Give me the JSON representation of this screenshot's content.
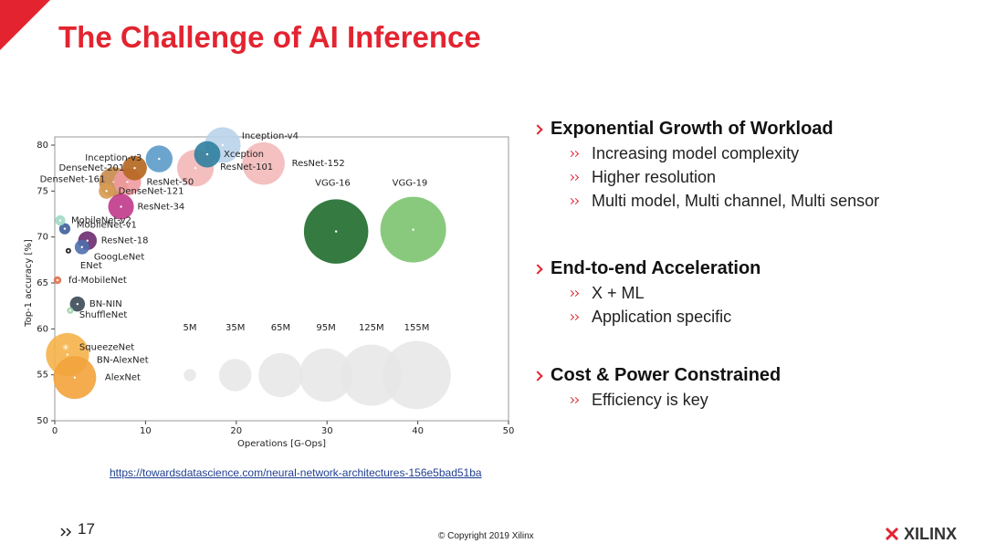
{
  "header": {
    "title": "The Challenge of AI Inference"
  },
  "chart_data": {
    "type": "bubble",
    "xlabel": "Operations [G-Ops]",
    "ylabel": "Top-1 accuracy [%]",
    "labels": [
      "Inception-v4",
      "Xception",
      "ResNet-152",
      "ResNet-101",
      "Inception-v3",
      "DenseNet-201",
      "ResNet-50",
      "DenseNet-161",
      "DenseNet-121",
      "ResNet-34",
      "VGG-16",
      "VGG-19",
      "MobileNet-v2",
      "MobileNet-v1",
      "ResNet-18",
      "GoogLeNet",
      "ENet",
      "fd-MobileNet",
      "BN-NIN",
      "ShuffleNet",
      "SqueezeNet",
      "BN-AlexNet",
      "AlexNet"
    ],
    "x": [
      18.5,
      16.8,
      23,
      15.5,
      11.5,
      8.8,
      8,
      6.5,
      5.7,
      7.3,
      31,
      39.5,
      0.6,
      1.1,
      3.6,
      3,
      1.5,
      0.3,
      2.5,
      1.7,
      1.2,
      1.4,
      2.2
    ],
    "values": [
      80,
      79,
      78,
      77.5,
      78.5,
      77.5,
      76,
      76,
      75,
      73.3,
      70.6,
      70.8,
      71.8,
      70.9,
      69.6,
      68.9,
      68.5,
      65.3,
      62.7,
      62,
      58,
      57.2,
      54.7
    ],
    "sizes": [
      43,
      23,
      60,
      45,
      24,
      20,
      25,
      29,
      8,
      22,
      138,
      144,
      3.5,
      4.2,
      11.7,
      7,
      0.4,
      2,
      7.6,
      1.4,
      1.2,
      62,
      61
    ],
    "colors": [
      "#b9d3ea",
      "#2f7f9e",
      "#f3b9b9",
      "#f4b7b7",
      "#5b9bc9",
      "#b5651d",
      "#ef9aa0",
      "#c68a4a",
      "#d79b54",
      "#c0398a",
      "#1e6b2c",
      "#7cc36f",
      "#9fd9c7",
      "#3d5f9a",
      "#6b2a6f",
      "#4f6fae",
      "#111111",
      "#e0704f",
      "#3a4a55",
      "#9bd0a8",
      "#f6d38a",
      "#f5b24a",
      "#f3a33c"
    ],
    "xlim": [
      0,
      50
    ],
    "ylim": [
      50,
      80
    ],
    "xticks": [
      0,
      10,
      20,
      30,
      40,
      50
    ],
    "yticks": [
      50,
      55,
      60,
      65,
      70,
      75,
      80
    ],
    "size_legend": [
      {
        "value": 5,
        "label": "5M"
      },
      {
        "value": 35,
        "label": "35M"
      },
      {
        "value": 65,
        "label": "65M"
      },
      {
        "value": 95,
        "label": "95M"
      },
      {
        "value": 125,
        "label": "125M"
      },
      {
        "value": 155,
        "label": "155M"
      }
    ]
  },
  "source_link": "https://towardsdatascience.com/neural-network-architectures-156e5bad51ba",
  "sections": [
    {
      "heading": "Exponential Growth of Workload",
      "items": [
        "Increasing model complexity",
        "Higher resolution",
        "Multi model, Multi channel, Multi sensor"
      ]
    },
    {
      "heading": "End-to-end Acceleration",
      "items": [
        "X + ML",
        "Application specific"
      ]
    },
    {
      "heading": "Cost & Power Constrained",
      "items": [
        "Efficiency is key"
      ]
    }
  ],
  "footer": {
    "page": "17",
    "copyright": "© Copyright 2019 Xilinx",
    "logo": "XILINX"
  }
}
